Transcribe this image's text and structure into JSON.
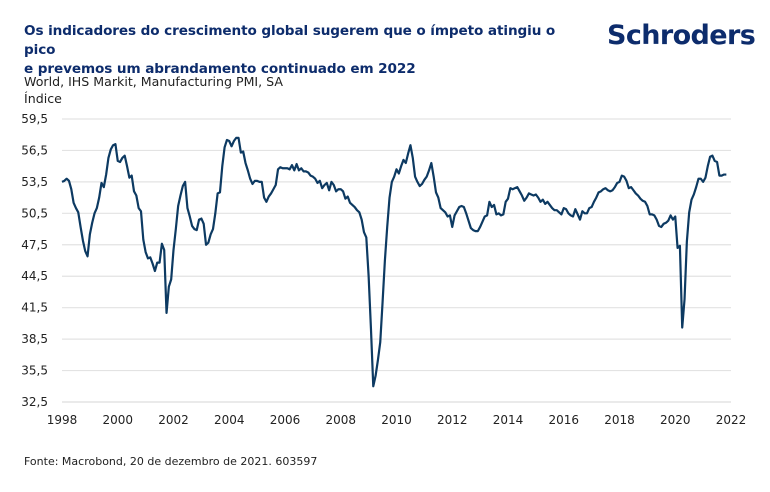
{
  "header": {
    "title_line1": "Os indicadores do crescimento global sugerem que o ímpeto atingiu o pico",
    "title_line2": "e prevemos um abrandamento continuado em 2022",
    "logo": "Schroders",
    "subtitle_line1": "World, IHS Markit, Manufacturing PMI, SA",
    "subtitle_line2": "Índice"
  },
  "footer": {
    "source": "Fonte: Macrobond, 20 de dezembro de 2021. 603597"
  },
  "colors": {
    "line": "#0d3a62",
    "title": "#0d2c6c",
    "grid": "#e3e3e3"
  },
  "chart_data": {
    "type": "line",
    "title": "Os indicadores do crescimento global sugerem que o ímpeto atingiu o pico e prevemos um abrandamento continuado em 2022",
    "subtitle": "World, IHS Markit, Manufacturing PMI, SA",
    "xlabel": "",
    "ylabel": "Índice",
    "ylim": [
      32.5,
      59.5
    ],
    "xlim": [
      1998,
      2022
    ],
    "yticks": [
      "59,5",
      "56,5",
      "53,5",
      "50,5",
      "47,5",
      "44,5",
      "41,5",
      "38,5",
      "35,5",
      "32,5"
    ],
    "ytick_values": [
      59.5,
      56.5,
      53.5,
      50.5,
      47.5,
      44.5,
      41.5,
      38.5,
      35.5,
      32.5
    ],
    "xticks": [
      "1998",
      "2000",
      "2002",
      "2004",
      "2006",
      "2008",
      "2010",
      "2012",
      "2014",
      "2016",
      "2018",
      "2020",
      "2022"
    ],
    "xtick_values": [
      1998,
      2000,
      2002,
      2004,
      2006,
      2008,
      2010,
      2012,
      2014,
      2016,
      2018,
      2020,
      2022
    ],
    "grid": true,
    "legend": "none",
    "series": [
      {
        "name": "World, IHS Markit, Manufacturing PMI, SA",
        "start": "1998-01",
        "frequency": "monthly",
        "values": [
          53.5,
          53.6,
          53.8,
          53.6,
          52.8,
          51.5,
          51.0,
          50.6,
          49.2,
          47.9,
          46.9,
          46.4,
          48.5,
          49.6,
          50.5,
          51.0,
          52.0,
          53.4,
          53.0,
          54.2,
          55.8,
          56.6,
          57.0,
          57.1,
          55.5,
          55.4,
          55.8,
          56.0,
          55.0,
          53.9,
          54.1,
          52.6,
          52.2,
          51.0,
          50.7,
          48.0,
          46.8,
          46.2,
          46.3,
          45.7,
          45.0,
          45.8,
          45.8,
          47.6,
          47.0,
          41.0,
          43.5,
          44.2,
          47.0,
          49.0,
          51.2,
          52.2,
          53.1,
          53.5,
          51.0,
          50.2,
          49.3,
          49.0,
          48.9,
          49.9,
          50.0,
          49.5,
          47.5,
          47.7,
          48.5,
          49.0,
          50.5,
          52.4,
          52.5,
          55.0,
          56.8,
          57.5,
          57.4,
          56.9,
          57.4,
          57.7,
          57.7,
          56.3,
          56.4,
          55.3,
          54.6,
          53.8,
          53.3,
          53.6,
          53.6,
          53.5,
          53.5,
          52.0,
          51.6,
          52.1,
          52.4,
          52.8,
          53.2,
          54.7,
          54.9,
          54.8,
          54.8,
          54.8,
          54.7,
          55.1,
          54.6,
          55.2,
          54.6,
          54.8,
          54.5,
          54.5,
          54.4,
          54.1,
          54.0,
          53.8,
          53.4,
          53.6,
          52.9,
          53.2,
          53.4,
          52.7,
          53.5,
          53.2,
          52.6,
          52.8,
          52.8,
          52.6,
          51.9,
          52.1,
          51.5,
          51.3,
          51.1,
          50.8,
          50.6,
          49.9,
          48.7,
          48.2,
          44.5,
          39.5,
          34.0,
          35.0,
          36.5,
          38.2,
          42.0,
          46.0,
          49.2,
          52.0,
          53.5,
          54.0,
          54.7,
          54.3,
          55.0,
          55.6,
          55.3,
          56.2,
          57.0,
          55.8,
          54.0,
          53.5,
          53.1,
          53.3,
          53.7,
          54.0,
          54.6,
          55.3,
          54.0,
          52.5,
          52.0,
          51.0,
          50.8,
          50.6,
          50.2,
          50.3,
          49.2,
          50.3,
          50.7,
          51.1,
          51.2,
          51.1,
          50.5,
          49.8,
          49.1,
          48.9,
          48.8,
          48.8,
          49.2,
          49.7,
          50.2,
          50.3,
          51.6,
          51.1,
          51.3,
          50.4,
          50.5,
          50.3,
          50.4,
          51.6,
          51.9,
          52.9,
          52.8,
          52.9,
          53.0,
          52.6,
          52.2,
          51.7,
          52.0,
          52.4,
          52.3,
          52.2,
          52.3,
          52.0,
          51.6,
          51.8,
          51.4,
          51.6,
          51.3,
          51.0,
          50.8,
          50.8,
          50.6,
          50.4,
          51.0,
          50.9,
          50.5,
          50.3,
          50.2,
          50.9,
          50.4,
          49.9,
          50.7,
          50.5,
          50.5,
          51.0,
          51.1,
          51.6,
          52.0,
          52.5,
          52.6,
          52.8,
          52.9,
          52.7,
          52.6,
          52.7,
          53.0,
          53.4,
          53.5,
          54.1,
          54.0,
          53.6,
          52.9,
          53.0,
          52.7,
          52.4,
          52.2,
          51.9,
          51.7,
          51.6,
          51.2,
          50.4,
          50.4,
          50.3,
          49.9,
          49.3,
          49.2,
          49.5,
          49.6,
          49.8,
          50.3,
          49.9,
          50.2,
          47.2,
          47.4,
          39.6,
          42.3,
          47.8,
          50.6,
          51.8,
          52.3,
          53.0,
          53.8,
          53.8,
          53.5,
          53.9,
          55.0,
          55.9,
          56.0,
          55.5,
          55.4,
          54.1,
          54.1,
          54.2,
          54.2
        ]
      }
    ]
  }
}
